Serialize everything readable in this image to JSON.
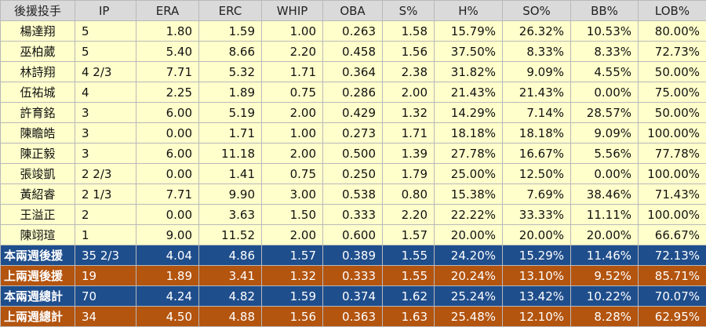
{
  "headers": [
    "後援投手",
    "IP",
    "ERA",
    "ERC",
    "WHIP",
    "OBA",
    "S%",
    "H%",
    "SO%",
    "BB%",
    "LOB%"
  ],
  "pitchers": [
    [
      "楊達翔",
      "5",
      "1.80",
      "1.59",
      "1.00",
      "0.263",
      "1.58",
      "15.79%",
      "26.32%",
      "10.53%",
      "80.00%"
    ],
    [
      "巫柏葳",
      "5",
      "5.40",
      "8.66",
      "2.20",
      "0.458",
      "1.56",
      "37.50%",
      "8.33%",
      "8.33%",
      "72.73%"
    ],
    [
      "林詩翔",
      "4 2/3",
      "7.71",
      "5.32",
      "1.71",
      "0.364",
      "2.38",
      "31.82%",
      "9.09%",
      "4.55%",
      "50.00%"
    ],
    [
      "伍祐城",
      "4",
      "2.25",
      "1.89",
      "0.75",
      "0.286",
      "2.00",
      "21.43%",
      "21.43%",
      "0.00%",
      "75.00%"
    ],
    [
      "許育銘",
      "3",
      "6.00",
      "5.19",
      "2.00",
      "0.429",
      "1.32",
      "14.29%",
      "7.14%",
      "28.57%",
      "50.00%"
    ],
    [
      "陳瞻皓",
      "3",
      "0.00",
      "1.71",
      "1.00",
      "0.273",
      "1.71",
      "18.18%",
      "18.18%",
      "9.09%",
      "100.00%"
    ],
    [
      "陳正毅",
      "3",
      "6.00",
      "11.18",
      "2.00",
      "0.500",
      "1.39",
      "27.78%",
      "16.67%",
      "5.56%",
      "77.78%"
    ],
    [
      "張竣凱",
      "2 2/3",
      "0.00",
      "1.41",
      "0.75",
      "0.250",
      "1.79",
      "25.00%",
      "12.50%",
      "0.00%",
      "100.00%"
    ],
    [
      "黃紹睿",
      "2 1/3",
      "7.71",
      "9.90",
      "3.00",
      "0.538",
      "0.80",
      "15.38%",
      "7.69%",
      "38.46%",
      "71.43%"
    ],
    [
      "王溢正",
      "2",
      "0.00",
      "3.63",
      "1.50",
      "0.333",
      "2.20",
      "22.22%",
      "33.33%",
      "11.11%",
      "100.00%"
    ],
    [
      "陳翊瑄",
      "1",
      "9.00",
      "11.52",
      "2.00",
      "0.600",
      "1.57",
      "20.00%",
      "20.00%",
      "20.00%",
      "66.67%"
    ]
  ],
  "summaries": [
    {
      "style": "blue",
      "cells": [
        "本兩週後援",
        "35 2/3",
        "4.04",
        "4.86",
        "1.57",
        "0.389",
        "1.55",
        "24.20%",
        "15.29%",
        "11.46%",
        "72.13%"
      ]
    },
    {
      "style": "orange",
      "cells": [
        "上兩週後援",
        "19",
        "1.89",
        "3.41",
        "1.32",
        "0.333",
        "1.55",
        "20.24%",
        "13.10%",
        "9.52%",
        "85.71%"
      ]
    },
    {
      "style": "blue",
      "cells": [
        "本兩週總計",
        "70",
        "4.24",
        "4.82",
        "1.59",
        "0.374",
        "1.62",
        "25.24%",
        "13.42%",
        "10.22%",
        "70.07%"
      ]
    },
    {
      "style": "orange",
      "cells": [
        "上兩週總計",
        "34",
        "4.50",
        "4.88",
        "1.56",
        "0.363",
        "1.63",
        "25.48%",
        "12.10%",
        "8.28%",
        "62.95%"
      ]
    }
  ],
  "colors": {
    "header_bg": "#dadada",
    "row_bg": "#ffffcc",
    "summary_blue": "#1f4e8c",
    "summary_orange": "#b3540f"
  }
}
